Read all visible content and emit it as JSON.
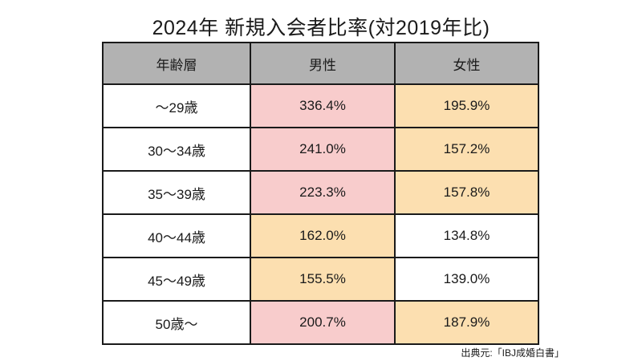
{
  "title": "2024年 新規入会者比率(対2019年比)",
  "source": "出典元:「IBJ成婚白書」",
  "colors": {
    "header_bg": "#b2b2b2",
    "cell_pink": "#f8cccc",
    "cell_orange": "#fcdfb0",
    "cell_white": "#ffffff",
    "border": "#1a1a1a",
    "text": "#1a1a1a"
  },
  "table": {
    "headers": [
      "年齢層",
      "男性",
      "女性"
    ],
    "rows": [
      {
        "age": "〜29歳",
        "male": "336.4%",
        "female": "195.9%",
        "male_tone": "pink",
        "female_tone": "orange"
      },
      {
        "age": "30〜34歳",
        "male": "241.0%",
        "female": "157.2%",
        "male_tone": "pink",
        "female_tone": "orange"
      },
      {
        "age": "35〜39歳",
        "male": "223.3%",
        "female": "157.8%",
        "male_tone": "pink",
        "female_tone": "orange"
      },
      {
        "age": "40〜44歳",
        "male": "162.0%",
        "female": "134.8%",
        "male_tone": "orange",
        "female_tone": "white"
      },
      {
        "age": "45〜49歳",
        "male": "155.5%",
        "female": "139.0%",
        "male_tone": "orange",
        "female_tone": "white"
      },
      {
        "age": "50歳〜",
        "male": "200.7%",
        "female": "187.9%",
        "male_tone": "pink",
        "female_tone": "orange"
      }
    ]
  },
  "chart_data": {
    "type": "table",
    "title": "2024年 新規入会者比率(対2019年比)",
    "columns": [
      "年齢層",
      "男性",
      "女性"
    ],
    "categories": [
      "〜29歳",
      "30〜34歳",
      "35〜39歳",
      "40〜44歳",
      "45〜49歳",
      "50歳〜"
    ],
    "series": [
      {
        "name": "男性",
        "values": [
          336.4,
          241.0,
          223.3,
          162.0,
          155.5,
          200.7
        ],
        "unit": "%"
      },
      {
        "name": "女性",
        "values": [
          195.9,
          157.2,
          157.8,
          134.8,
          139.0,
          187.9
        ],
        "unit": "%"
      }
    ],
    "rows": [
      [
        "〜29歳",
        "336.4%",
        "195.9%"
      ],
      [
        "30〜34歳",
        "241.0%",
        "157.2%"
      ],
      [
        "35〜39歳",
        "223.3%",
        "157.8%"
      ],
      [
        "40〜44歳",
        "162.0%",
        "134.8%"
      ],
      [
        "45〜49歳",
        "155.5%",
        "139.0%"
      ],
      [
        "50歳〜",
        "200.7%",
        "187.9%"
      ]
    ],
    "source": "出典元:「IBJ成婚白書」",
    "cell_highlighting": "pink = highest increases, orange = moderate, white = lowest"
  }
}
